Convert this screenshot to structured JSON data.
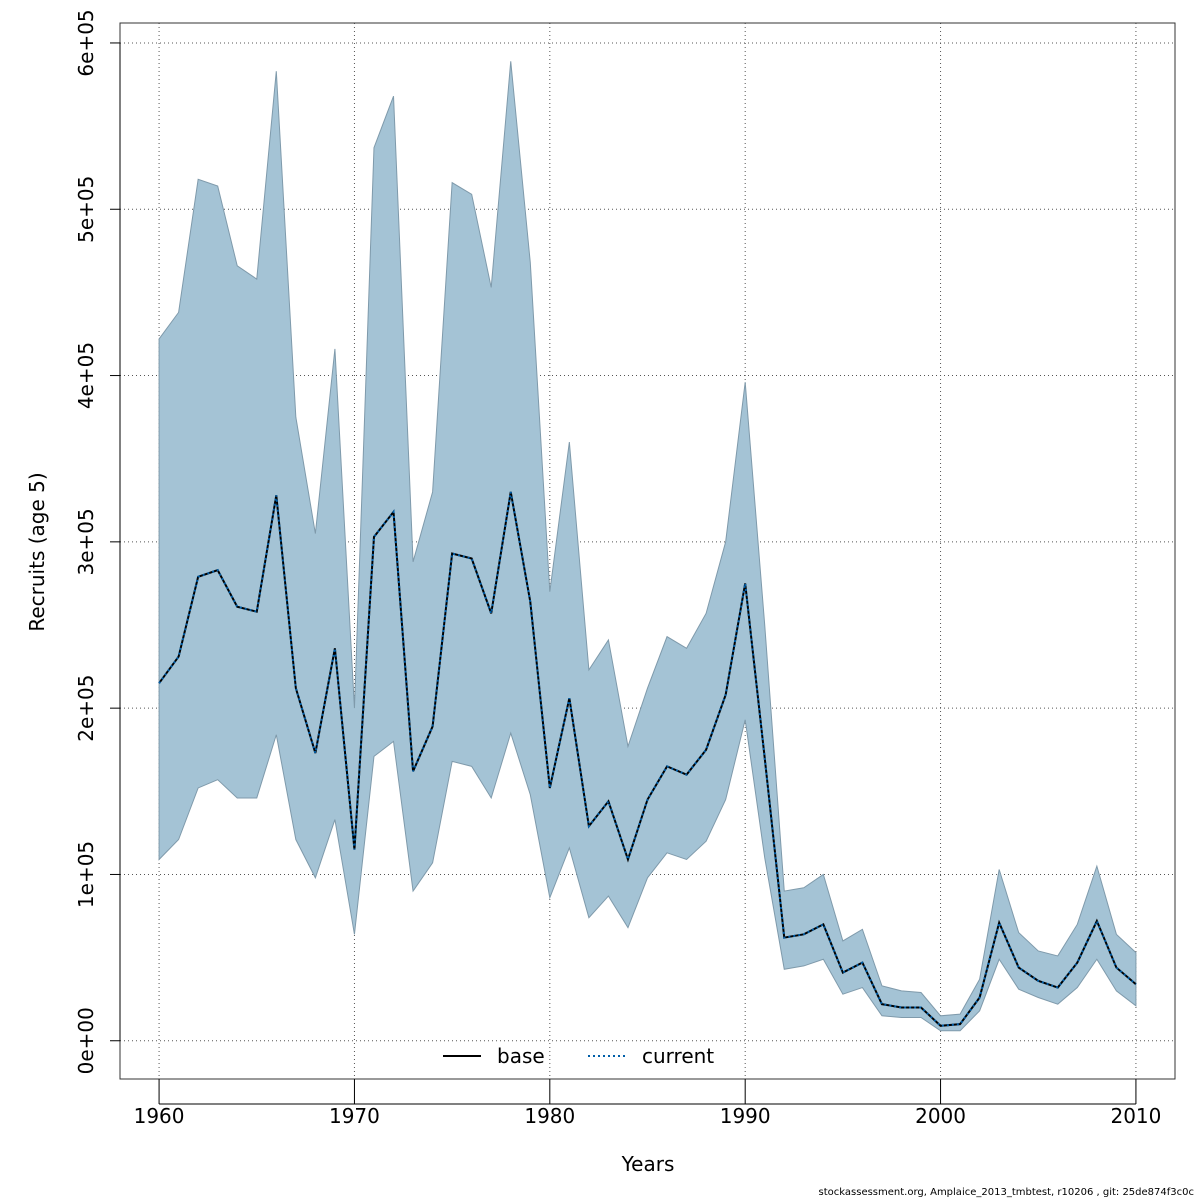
{
  "chart_data": {
    "type": "area",
    "xlabel": "Years",
    "ylabel": "Recruits (age 5)",
    "xlim": [
      1958,
      2012
    ],
    "ylim": [
      -23000,
      612000
    ],
    "x_ticks": [
      1960,
      1970,
      1980,
      1990,
      2000,
      2010
    ],
    "x_tick_labels": [
      "1960",
      "1970",
      "1980",
      "1990",
      "2000",
      "2010"
    ],
    "y_ticks": [
      0,
      100000,
      200000,
      300000,
      400000,
      500000,
      600000
    ],
    "y_tick_labels": [
      "0e+00",
      "1e+05",
      "2e+05",
      "3e+05",
      "4e+05",
      "5e+05",
      "6e+05"
    ],
    "grid": true,
    "legend_position": "bottom-center",
    "band_color": "#a4c3d5",
    "years": [
      1960,
      1961,
      1962,
      1963,
      1964,
      1965,
      1966,
      1967,
      1968,
      1969,
      1970,
      1971,
      1972,
      1973,
      1974,
      1975,
      1976,
      1977,
      1978,
      1979,
      1980,
      1981,
      1982,
      1983,
      1984,
      1985,
      1986,
      1987,
      1988,
      1989,
      1990,
      1991,
      1992,
      1993,
      1994,
      1995,
      1996,
      1997,
      1998,
      1999,
      2000,
      2001,
      2002,
      2003,
      2004,
      2005,
      2006,
      2007,
      2008,
      2009,
      2010
    ],
    "upper": [
      422000,
      438000,
      518000,
      514000,
      466000,
      458000,
      583000,
      375000,
      305000,
      416000,
      200000,
      537000,
      568000,
      288000,
      330000,
      516000,
      509000,
      453000,
      589000,
      468000,
      270000,
      360000,
      223000,
      241000,
      177000,
      212000,
      243000,
      236000,
      257000,
      300000,
      396000,
      250000,
      90000,
      92000,
      100000,
      60000,
      67000,
      33000,
      30000,
      29000,
      15000,
      16000,
      37000,
      103000,
      65000,
      54000,
      51000,
      70000,
      105000,
      64000,
      53000
    ],
    "lower": [
      109000,
      121000,
      152000,
      157000,
      146000,
      146000,
      184000,
      121000,
      98000,
      133000,
      64000,
      171000,
      180000,
      90000,
      107000,
      168000,
      165000,
      146000,
      185000,
      148000,
      86000,
      116000,
      74000,
      87000,
      68000,
      98000,
      113000,
      109000,
      120000,
      145000,
      193000,
      110000,
      43000,
      45000,
      49000,
      28000,
      32000,
      15000,
      14000,
      14000,
      6000,
      6000,
      18000,
      49000,
      31000,
      26000,
      22000,
      32000,
      49000,
      30000,
      21000
    ],
    "series": [
      {
        "name": "base",
        "color": "#000000",
        "dash": "solid",
        "values": [
          215000,
          231000,
          279000,
          283000,
          261000,
          258000,
          328000,
          212000,
          173000,
          236000,
          115000,
          303000,
          318000,
          162000,
          189000,
          293000,
          290000,
          257000,
          330000,
          264000,
          152000,
          206000,
          129000,
          144000,
          109000,
          145000,
          165000,
          160000,
          175000,
          208000,
          275000,
          170000,
          62000,
          64000,
          70000,
          41000,
          47000,
          22000,
          20000,
          20000,
          9000,
          10000,
          26000,
          71000,
          44000,
          36000,
          32000,
          47000,
          72000,
          44000,
          34000
        ]
      },
      {
        "name": "current",
        "color": "#005ea8",
        "dash": "dotted",
        "values": [
          215000,
          231000,
          279000,
          283000,
          261000,
          258000,
          328000,
          212000,
          173000,
          236000,
          115000,
          303000,
          318000,
          162000,
          189000,
          293000,
          290000,
          257000,
          330000,
          264000,
          152000,
          206000,
          129000,
          144000,
          109000,
          145000,
          165000,
          160000,
          175000,
          208000,
          275000,
          170000,
          62000,
          64000,
          70000,
          41000,
          47000,
          22000,
          20000,
          20000,
          9000,
          10000,
          26000,
          71000,
          44000,
          36000,
          32000,
          47000,
          72000,
          44000,
          34000
        ]
      }
    ]
  },
  "footer": "stockassessment.org, Amplaice_2013_tmbtest, r10206 , git: 25de874f3c0c"
}
